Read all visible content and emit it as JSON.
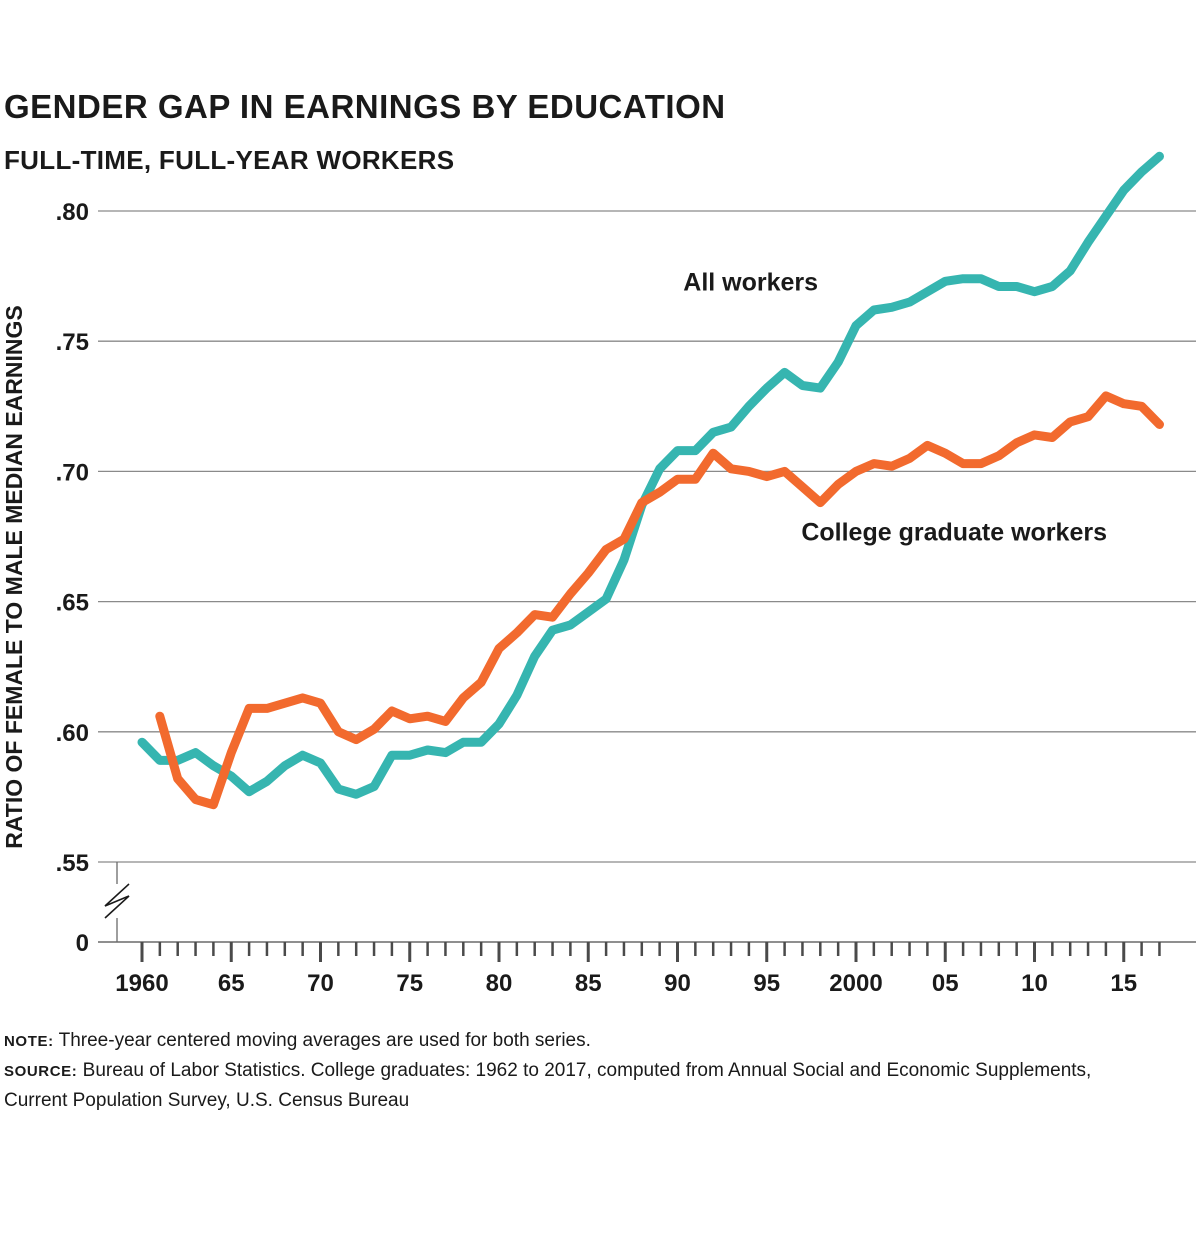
{
  "chart_data": {
    "type": "line",
    "title": "GENDER GAP IN EARNINGS BY EDUCATION",
    "subtitle": "FULL-TIME, FULL-YEAR WORKERS",
    "ylabel": "RATIO OF FEMALE TO MALE MEDIAN EARNINGS",
    "xlabel": "",
    "ylim": [
      0.55,
      0.8
    ],
    "y_break": true,
    "y_ticks": [
      {
        "value": 0.8,
        "label": ".80"
      },
      {
        "value": 0.75,
        "label": ".75"
      },
      {
        "value": 0.7,
        "label": ".70"
      },
      {
        "value": 0.65,
        "label": ".65"
      },
      {
        "value": 0.6,
        "label": ".60"
      },
      {
        "value": 0.55,
        "label": ".55"
      }
    ],
    "y_zero_label": "0",
    "x_ticks": [
      {
        "value": 1960,
        "label": "1960"
      },
      {
        "value": 1965,
        "label": "65"
      },
      {
        "value": 1970,
        "label": "70"
      },
      {
        "value": 1975,
        "label": "75"
      },
      {
        "value": 1980,
        "label": "80"
      },
      {
        "value": 1985,
        "label": "85"
      },
      {
        "value": 1990,
        "label": "90"
      },
      {
        "value": 1995,
        "label": "95"
      },
      {
        "value": 2000,
        "label": "2000"
      },
      {
        "value": 2005,
        "label": "05"
      },
      {
        "value": 2010,
        "label": "10"
      },
      {
        "value": 2015,
        "label": "15"
      }
    ],
    "grid": true,
    "series": [
      {
        "name": "All workers",
        "color": "#36b5b0",
        "x": [
          1960,
          1961,
          1962,
          1963,
          1964,
          1965,
          1966,
          1967,
          1968,
          1969,
          1970,
          1971,
          1972,
          1973,
          1974,
          1975,
          1976,
          1977,
          1978,
          1979,
          1980,
          1981,
          1982,
          1983,
          1984,
          1985,
          1986,
          1987,
          1988,
          1989,
          1990,
          1991,
          1992,
          1993,
          1994,
          1995,
          1996,
          1997,
          1998,
          1999,
          2000,
          2001,
          2002,
          2003,
          2004,
          2005,
          2006,
          2007,
          2008,
          2009,
          2010,
          2011,
          2012,
          2013,
          2014,
          2015,
          2016,
          2017
        ],
        "values": [
          0.596,
          0.589,
          0.589,
          0.592,
          0.587,
          0.583,
          0.577,
          0.581,
          0.587,
          0.591,
          0.588,
          0.578,
          0.576,
          0.579,
          0.591,
          0.591,
          0.593,
          0.592,
          0.596,
          0.596,
          0.603,
          0.614,
          0.629,
          0.639,
          0.641,
          0.646,
          0.651,
          0.666,
          0.687,
          0.701,
          0.708,
          0.708,
          0.715,
          0.717,
          0.725,
          0.732,
          0.738,
          0.733,
          0.732,
          0.742,
          0.756,
          0.762,
          0.763,
          0.765,
          0.769,
          0.773,
          0.774,
          0.774,
          0.771,
          0.771,
          0.769,
          0.771,
          0.777,
          0.788,
          0.798,
          0.808,
          0.815,
          0.821
        ]
      },
      {
        "name": "College graduate workers",
        "color": "#f26a2e",
        "x": [
          1961,
          1962,
          1963,
          1964,
          1965,
          1966,
          1967,
          1968,
          1969,
          1970,
          1971,
          1972,
          1973,
          1974,
          1975,
          1976,
          1977,
          1978,
          1979,
          1980,
          1981,
          1982,
          1983,
          1984,
          1985,
          1986,
          1987,
          1988,
          1989,
          1990,
          1991,
          1992,
          1993,
          1994,
          1995,
          1996,
          1997,
          1998,
          1999,
          2000,
          2001,
          2002,
          2003,
          2004,
          2005,
          2006,
          2007,
          2008,
          2009,
          2010,
          2011,
          2012,
          2013,
          2014,
          2015,
          2016,
          2017
        ],
        "values": [
          0.606,
          0.582,
          0.574,
          0.572,
          0.592,
          0.609,
          0.609,
          0.611,
          0.613,
          0.611,
          0.6,
          0.597,
          0.601,
          0.608,
          0.605,
          0.606,
          0.604,
          0.613,
          0.619,
          0.632,
          0.638,
          0.645,
          0.644,
          0.653,
          0.661,
          0.67,
          0.674,
          0.688,
          0.692,
          0.697,
          0.697,
          0.707,
          0.701,
          0.7,
          0.698,
          0.7,
          0.694,
          0.688,
          0.695,
          0.7,
          0.703,
          0.702,
          0.705,
          0.71,
          0.707,
          0.703,
          0.703,
          0.706,
          0.711,
          0.714,
          0.713,
          0.719,
          0.721,
          0.729,
          0.726,
          0.725,
          0.718
        ]
      }
    ]
  },
  "notes": {
    "note_key": "NOTE:",
    "note_text": " Three-year centered moving averages are used for both series.",
    "source_key": "SOURCE:",
    "source_text": " Bureau of Labor Statistics. College graduates: 1962 to 2017, computed from Annual Social and Economic Supplements, Current Population Survey, U.S. Census Bureau"
  }
}
